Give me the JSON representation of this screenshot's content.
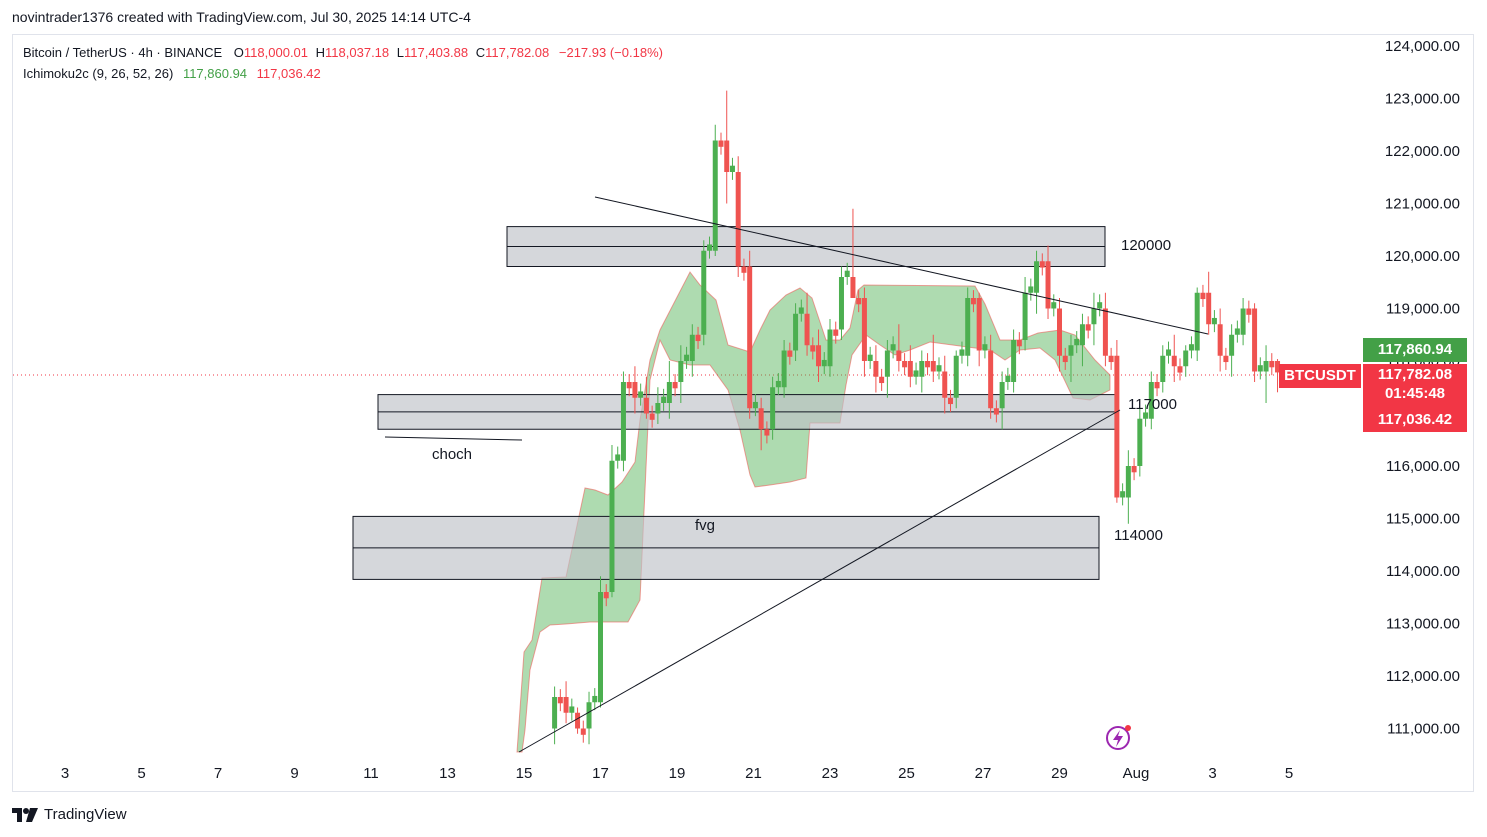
{
  "credit": "novintrader1376 created with TradingView.com, Jul 30, 2025 14:14 UTC-4",
  "symbol": {
    "name": "Bitcoin / TetherUS · 4h · BINANCE",
    "o_label": "O",
    "o": "118,000.01",
    "h_label": "H",
    "h": "118,037.18",
    "l_label": "L",
    "l": "117,403.88",
    "c_label": "C",
    "c": "117,782.08",
    "change": "−217.93 (−0.18%)"
  },
  "indicator": {
    "name": "Ichimoku2c (9, 26, 52, 26)",
    "value_a": "117,860.94",
    "value_b": "117,036.42"
  },
  "price_tags": {
    "ichimoku_a": "117,860.94",
    "ticker": "BTCUSDT",
    "last": "117,782.08",
    "countdown": "01:45:48",
    "ichimoku_b": "117,036.42"
  },
  "annotations": {
    "zone_120000": "120000",
    "zone_117000": "117000",
    "zone_114000": "114000",
    "choch": "choch",
    "fvg": "fvg"
  },
  "brand": "TradingView",
  "colors": {
    "up": "#089981",
    "down": "#f23645",
    "up_candle": "#4caf50",
    "down_candle": "#ef5350",
    "cloud": "#7ccf77",
    "zone": "#d1d4dc"
  },
  "chart_data": {
    "type": "candlestick",
    "yaxis": {
      "ticks": [
        "124,000.00",
        "123,000.00",
        "122,000.00",
        "121,000.00",
        "120,000.00",
        "119,000.00",
        "118,000.00",
        "117,000.00",
        "116,000.00",
        "115,000.00",
        "114,000.00",
        "113,000.00",
        "112,000.00",
        "111,000.00"
      ],
      "range": [
        110600,
        124300
      ]
    },
    "xaxis": {
      "ticks": [
        "3",
        "5",
        "7",
        "9",
        "11",
        "13",
        "15",
        "17",
        "19",
        "21",
        "23",
        "25",
        "27",
        "29",
        "Aug",
        "3",
        "5"
      ]
    },
    "candles_approx": [
      [
        9.5,
        111000,
        111800,
        110700,
        111600
      ],
      [
        9.8,
        111600,
        111900,
        111100,
        111300
      ],
      [
        10.1,
        111300,
        111400,
        110900,
        111000
      ],
      [
        10.4,
        111000,
        111700,
        110700,
        111500
      ],
      [
        10.7,
        111500,
        113900,
        111400,
        113600
      ],
      [
        11.0,
        113600,
        116400,
        113500,
        116100
      ],
      [
        11.3,
        116100,
        117800,
        115900,
        117600
      ],
      [
        11.6,
        117600,
        117900,
        117000,
        117300
      ],
      [
        11.9,
        117300,
        117700,
        116900,
        117000
      ],
      [
        12.2,
        117000,
        117500,
        116800,
        117200
      ],
      [
        12.5,
        117200,
        118000,
        116900,
        117600
      ],
      [
        12.8,
        117600,
        118300,
        117200,
        118000
      ],
      [
        13.1,
        118000,
        118700,
        117700,
        118500
      ],
      [
        13.4,
        118500,
        120300,
        118300,
        120100
      ],
      [
        13.7,
        120100,
        122500,
        120000,
        122200
      ],
      [
        14.0,
        122200,
        123150,
        121000,
        121600
      ],
      [
        14.3,
        121600,
        121900,
        119600,
        119800
      ],
      [
        14.6,
        119800,
        120100,
        116900,
        117100
      ],
      [
        14.9,
        117100,
        117300,
        116300,
        116700
      ],
      [
        15.2,
        116700,
        117700,
        116500,
        117500
      ],
      [
        15.5,
        117500,
        118400,
        117300,
        118200
      ],
      [
        15.8,
        118200,
        119100,
        118000,
        118900
      ],
      [
        16.1,
        118900,
        119300,
        118100,
        118300
      ],
      [
        16.4,
        118300,
        118600,
        117600,
        117900
      ],
      [
        16.7,
        117900,
        118800,
        117700,
        118600
      ],
      [
        17.0,
        118600,
        119800,
        118400,
        119600
      ],
      [
        17.3,
        119600,
        120900,
        119300,
        119200
      ],
      [
        17.6,
        119200,
        119400,
        117700,
        118000
      ],
      [
        17.9,
        118000,
        118300,
        117400,
        117700
      ],
      [
        18.2,
        117700,
        118400,
        117300,
        118200
      ],
      [
        18.5,
        118200,
        118700,
        117800,
        118000
      ],
      [
        18.8,
        118000,
        118300,
        117500,
        117700
      ],
      [
        19.1,
        117700,
        118200,
        117400,
        118000
      ],
      [
        19.4,
        118000,
        118500,
        117600,
        117800
      ],
      [
        19.7,
        117800,
        118100,
        117000,
        117300
      ],
      [
        20.0,
        117300,
        118200,
        117100,
        118100
      ],
      [
        20.3,
        118100,
        119400,
        117900,
        119200
      ],
      [
        20.6,
        119200,
        119300,
        117900,
        118200
      ],
      [
        20.9,
        118200,
        118500,
        116900,
        117100
      ],
      [
        21.2,
        117100,
        117800,
        116700,
        117600
      ],
      [
        21.5,
        117600,
        118600,
        117400,
        118400
      ],
      [
        21.8,
        118400,
        119600,
        118200,
        119300
      ],
      [
        22.1,
        119300,
        120100,
        118900,
        119900
      ],
      [
        22.4,
        119900,
        120200,
        118800,
        119000
      ],
      [
        22.7,
        119000,
        119200,
        117800,
        118100
      ],
      [
        23.0,
        118100,
        118500,
        117600,
        118300
      ],
      [
        23.3,
        118300,
        118900,
        117900,
        118700
      ],
      [
        23.6,
        118700,
        119300,
        118300,
        119000
      ],
      [
        23.9,
        119000,
        119300,
        117900,
        118100
      ],
      [
        24.2,
        118100,
        118400,
        115300,
        115400
      ],
      [
        24.5,
        115400,
        116300,
        114900,
        116000
      ],
      [
        24.8,
        116000,
        117100,
        115800,
        116900
      ],
      [
        25.1,
        116900,
        117800,
        116700,
        117600
      ],
      [
        25.4,
        117600,
        118300,
        117400,
        118100
      ],
      [
        25.7,
        118100,
        118500,
        117600,
        117900
      ],
      [
        26.0,
        117900,
        118300,
        117700,
        118200
      ],
      [
        26.3,
        118200,
        119400,
        118000,
        119300
      ],
      [
        26.6,
        119300,
        119700,
        118500,
        118700
      ],
      [
        26.9,
        118700,
        119000,
        117800,
        118100
      ],
      [
        27.2,
        118100,
        118700,
        117700,
        118500
      ],
      [
        27.5,
        118500,
        119200,
        118300,
        119000
      ],
      [
        27.8,
        119000,
        119100,
        117600,
        117800
      ],
      [
        28.1,
        117800,
        118300,
        117200,
        118000
      ],
      [
        28.4,
        118000,
        118037,
        117404,
        117782
      ]
    ],
    "lines": [
      {
        "name": "",
        "from": [
          17.0,
          121080
        ],
        "to": [
          31.2,
          118510
        ]
      },
      {
        "name": "",
        "from": [
          14.9,
          110620
        ],
        "to": [
          28.6,
          117040
        ]
      },
      {
        "name": "",
        "from": [
          11.3,
          116650
        ],
        "to": [
          14.8,
          116620
        ]
      }
    ],
    "zones": [
      {
        "label": "120000",
        "low": 119800,
        "high": 120560
      },
      {
        "label": "117000",
        "low": 116700,
        "high": 117360
      },
      {
        "label": "114000",
        "low": 113840,
        "high": 115040
      }
    ],
    "last_price": 117782.08
  }
}
